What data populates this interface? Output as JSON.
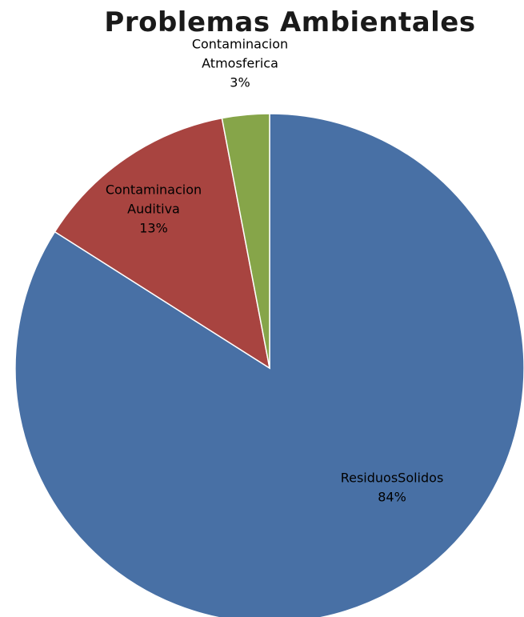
{
  "chart_data": {
    "type": "pie",
    "title": "Problemas Ambientales",
    "slices": [
      {
        "label": "ResiduosSolidos",
        "percent_label": "84%",
        "value": 84,
        "color": "#4870a5"
      },
      {
        "label": "Contaminacion Auditiva",
        "label_lines": [
          "Contaminacion",
          "Auditiva"
        ],
        "percent_label": "13%",
        "value": 13,
        "color": "#a84440"
      },
      {
        "label": "Contaminacion Atmosferica",
        "label_lines": [
          "Contaminacion",
          "Atmosferica"
        ],
        "percent_label": "3%",
        "value": 3,
        "color": "#86a549"
      }
    ],
    "legend": "none",
    "start": "12 o'clock",
    "direction": "clockwise"
  }
}
